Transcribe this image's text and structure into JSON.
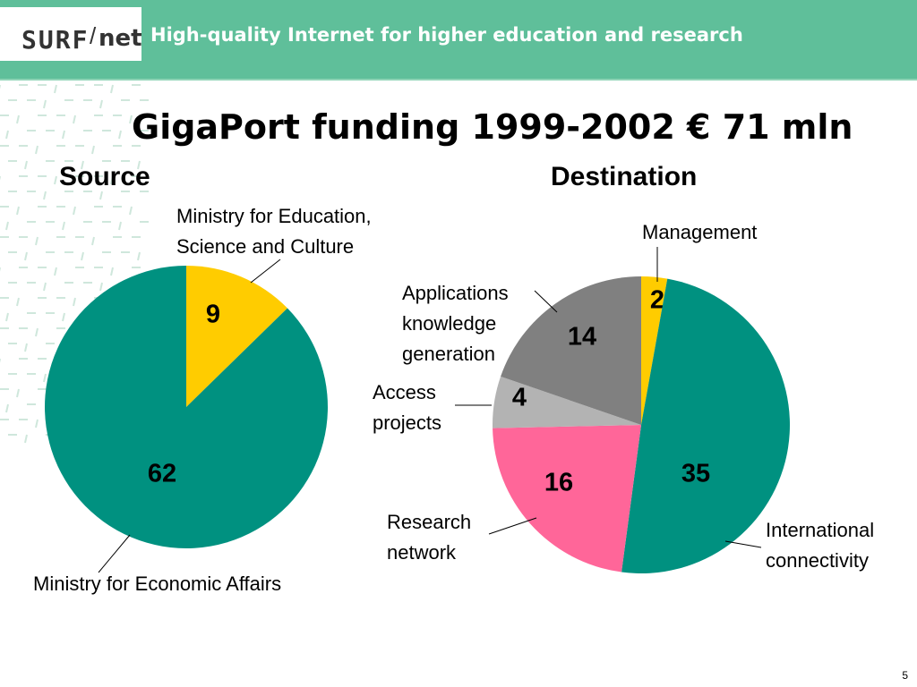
{
  "header": {
    "logo_surf": "SURF",
    "logo_slash": "/",
    "logo_net": "net",
    "tagline": "High-quality Internet for higher education and research"
  },
  "title": "GigaPort funding 1999-2002 € 71 mln",
  "page_number": "5",
  "colors": {
    "header_bg": "#5fbf9a",
    "teal": "#009180",
    "yellow": "#ffcc00",
    "pink": "#ff6699",
    "light_gray": "#b3b3b3",
    "gray": "#808080"
  },
  "chart_data": [
    {
      "type": "pie",
      "title": "Source",
      "slices": [
        {
          "label": "Ministry for Education, Science and Culture",
          "label_lines": [
            "Ministry for Education,",
            "Science and Culture"
          ],
          "value": 9,
          "color": "#ffcc00"
        },
        {
          "label": "Ministry for Economic Affairs",
          "label_lines": [
            "Ministry for Economic Affairs"
          ],
          "value": 62,
          "color": "#009180"
        }
      ]
    },
    {
      "type": "pie",
      "title": "Destination",
      "slices": [
        {
          "label": "Management",
          "label_lines": [
            "Management"
          ],
          "value": 2,
          "color": "#ffcc00"
        },
        {
          "label": "International connectivity",
          "label_lines": [
            "International",
            "connectivity"
          ],
          "value": 35,
          "color": "#009180"
        },
        {
          "label": "Research network",
          "label_lines": [
            "Research",
            "network"
          ],
          "value": 16,
          "color": "#ff6699"
        },
        {
          "label": "Access projects",
          "label_lines": [
            "Access",
            "projects"
          ],
          "value": 4,
          "color": "#b3b3b3"
        },
        {
          "label": "Applications knowledge generation",
          "label_lines": [
            "Applications",
            "knowledge",
            "generation"
          ],
          "value": 14,
          "color": "#808080"
        }
      ]
    }
  ]
}
